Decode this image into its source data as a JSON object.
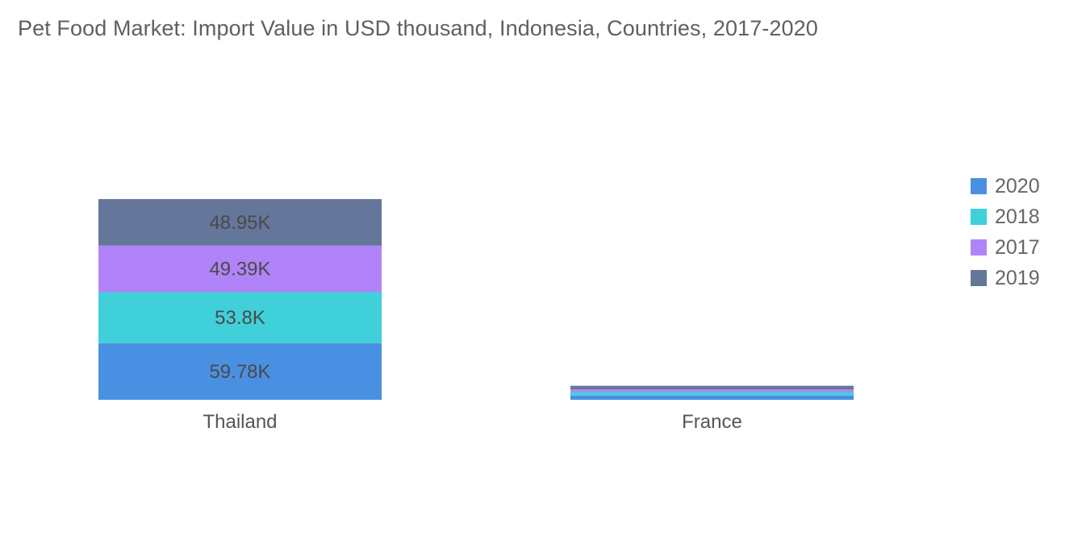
{
  "chart_data": {
    "type": "bar",
    "stacked": true,
    "title": "Pet Food Market: Import Value in USD thousand, Indonesia, Countries, 2017-2020",
    "categories": [
      "Thailand",
      "France"
    ],
    "series": [
      {
        "name": "2020",
        "color": "#4a90e2",
        "values": [
          59.78,
          4.5
        ],
        "labels": [
          "59.78K",
          ""
        ]
      },
      {
        "name": "2018",
        "color": "#3fd0d9",
        "values": [
          53.8,
          3.5
        ],
        "labels": [
          "53.8K",
          ""
        ]
      },
      {
        "name": "2017",
        "color": "#b084f8",
        "values": [
          49.39,
          3.0
        ],
        "labels": [
          "49.39K",
          ""
        ]
      },
      {
        "name": "2019",
        "color": "#647699",
        "values": [
          48.95,
          3.8
        ],
        "labels": [
          "48.95K",
          ""
        ]
      }
    ],
    "legend": {
      "position": "right",
      "items": [
        {
          "name": "2020",
          "color": "#4a90e2"
        },
        {
          "name": "2018",
          "color": "#3fd0d9"
        },
        {
          "name": "2017",
          "color": "#b084f8"
        },
        {
          "name": "2019",
          "color": "#647699"
        }
      ]
    },
    "grid": false,
    "y_axis_visible": false
  }
}
